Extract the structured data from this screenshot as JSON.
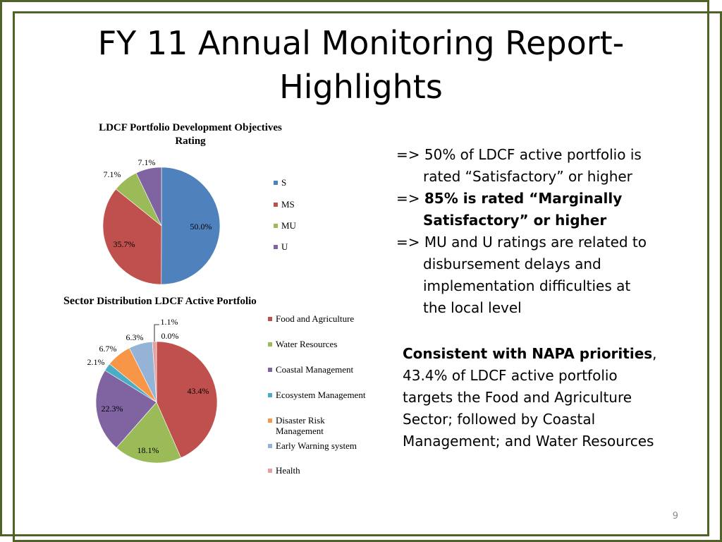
{
  "slide": {
    "title_line1": "FY 11 Annual Monitoring Report-",
    "title_line2": "Highlights",
    "page_number": "9",
    "frame_color": "#4f6228"
  },
  "right_panel": {
    "bullet1_a": "=> 50% of LDCF active portfolio is",
    "bullet1_b": "rated “Satisfactory” or higher",
    "bullet2_prefix": "=> ",
    "bullet2_bold_a": "85% is rated “Marginally",
    "bullet2_bold_b": "Satisfactory” or higher",
    "bullet3_a": "=> MU and U ratings are related to",
    "bullet3_b": "disbursement delays and",
    "bullet3_c": "implementation difficulties at",
    "bullet3_d": "the local level",
    "summary_bold": "Consistent with NAPA priorities",
    "summary_comma": ",",
    "summary_line2": "43.4% of LDCF active portfolio",
    "summary_line3": "targets the Food and Agriculture",
    "summary_line4": "Sector; followed by Coastal",
    "summary_line5": "Management; and Water Resources"
  },
  "chart_data": [
    {
      "type": "pie",
      "title_line1": "LDCF Portfolio Development Objectives",
      "title_line2": "Rating",
      "legend_position": "right",
      "categories": [
        "S",
        "MS",
        "MU",
        "U"
      ],
      "values": [
        50.0,
        35.7,
        7.1,
        7.1
      ],
      "labels": [
        "50.0%",
        "35.7%",
        "7.1%",
        "7.1%"
      ],
      "colors": [
        "#4f81bd",
        "#c0504d",
        "#9bbb59",
        "#8064a2"
      ]
    },
    {
      "type": "pie",
      "title_word1": "Sector",
      "title_rest": " Distribution LDCF Active Portfolio",
      "legend_position": "right",
      "categories": [
        "Food and Agriculture",
        "Water Resources",
        "Coastal Management",
        "Ecosystem Management",
        "Disaster Risk Management",
        "Early Warning  system",
        "Health"
      ],
      "values": [
        43.4,
        18.1,
        22.3,
        2.1,
        6.7,
        6.3,
        1.1
      ],
      "extra_label": "0.0%",
      "labels": [
        "43.4%",
        "18.1%",
        "22.3%",
        "2.1%",
        "6.7%",
        "6.3%",
        "1.1%"
      ],
      "colors": [
        "#c0504d",
        "#9bbb59",
        "#8064a2",
        "#4bacc6",
        "#f79646",
        "#95b3d7",
        "#e6a0a0"
      ]
    }
  ]
}
